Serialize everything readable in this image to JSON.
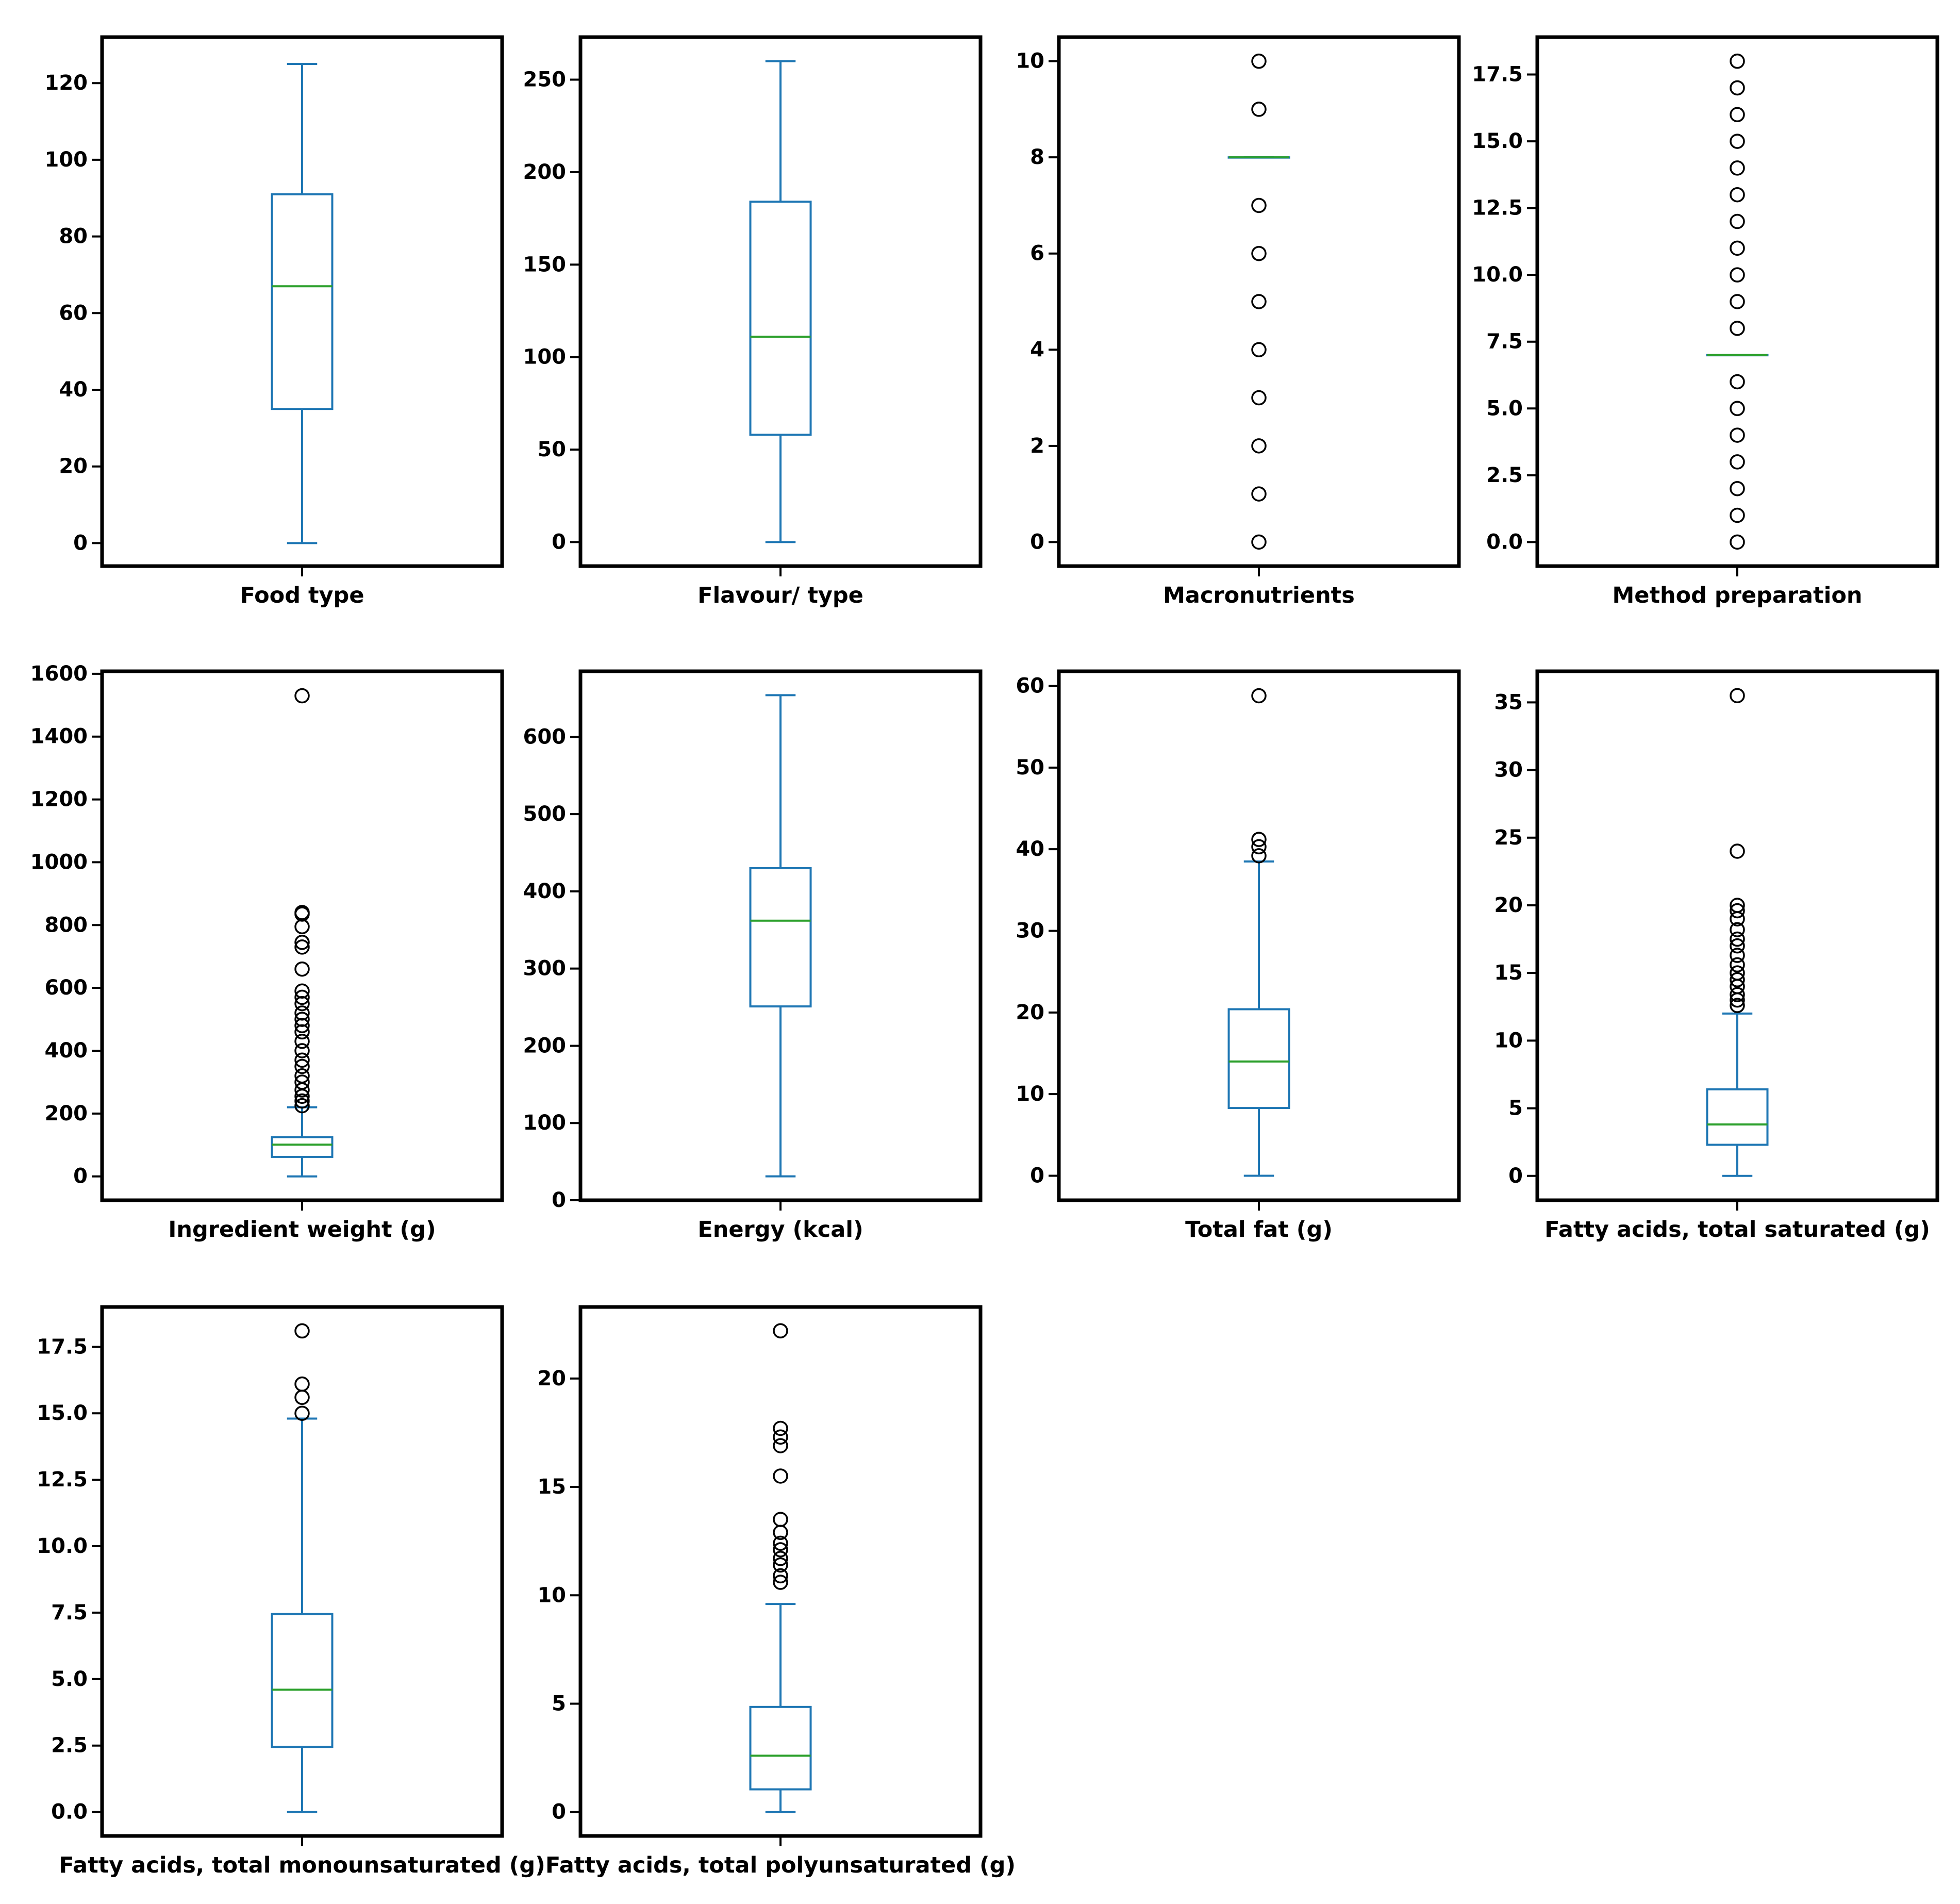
{
  "colors": {
    "box": "#1f77b4",
    "median": "#2ca02c",
    "frame": "#000000",
    "flier_edge": "#000000",
    "background": "#ffffff"
  },
  "chart_data": [
    {
      "type": "box",
      "label": "Food type",
      "ylim": [
        -6,
        132
      ],
      "yticks": [
        0,
        20,
        40,
        60,
        80,
        100,
        120
      ],
      "ytick_labels": [
        "0",
        "20",
        "40",
        "60",
        "80",
        "100",
        "120"
      ],
      "whisker_low": 0,
      "q1": 35,
      "median": 67,
      "q3": 91,
      "whisker_high": 125,
      "fliers": []
    },
    {
      "type": "box",
      "label": "Flavour/ type",
      "ylim": [
        -13,
        273
      ],
      "yticks": [
        0,
        50,
        100,
        150,
        200,
        250
      ],
      "ytick_labels": [
        "0",
        "50",
        "100",
        "150",
        "200",
        "250"
      ],
      "whisker_low": 0,
      "q1": 58,
      "median": 111,
      "q3": 184,
      "whisker_high": 260,
      "fliers": []
    },
    {
      "type": "box",
      "label": "Macronutrients",
      "ylim": [
        -0.5,
        10.5
      ],
      "yticks": [
        0,
        2,
        4,
        6,
        8,
        10
      ],
      "ytick_labels": [
        "0",
        "2",
        "4",
        "6",
        "8",
        "10"
      ],
      "whisker_low": 8,
      "q1": 8,
      "median": 8,
      "q3": 8,
      "whisker_high": 8,
      "fliers": [
        0,
        1,
        2,
        3,
        4,
        5,
        6,
        7,
        9,
        10
      ]
    },
    {
      "type": "box",
      "label": "Method preparation",
      "ylim": [
        -0.9,
        18.9
      ],
      "yticks": [
        0,
        2.5,
        5,
        7.5,
        10,
        12.5,
        15,
        17.5
      ],
      "ytick_labels": [
        "0.0",
        "2.5",
        "5.0",
        "7.5",
        "10.0",
        "12.5",
        "15.0",
        "17.5"
      ],
      "whisker_low": 7,
      "q1": 7,
      "median": 7,
      "q3": 7,
      "whisker_high": 7,
      "fliers": [
        0,
        1,
        2,
        3,
        4,
        5,
        6,
        8,
        9,
        10,
        11,
        12,
        13,
        14,
        15,
        16,
        17,
        18
      ]
    },
    {
      "type": "box",
      "label": "Ingredient weight (g)",
      "ylim": [
        -76,
        1608
      ],
      "yticks": [
        0,
        200,
        400,
        600,
        800,
        1000,
        1200,
        1400,
        1600
      ],
      "ytick_labels": [
        "0",
        "200",
        "400",
        "600",
        "800",
        "1000",
        "1200",
        "1400",
        "1600"
      ],
      "whisker_low": 0,
      "q1": 62,
      "median": 101,
      "q3": 125,
      "whisker_high": 220,
      "fliers": [
        225,
        240,
        255,
        275,
        300,
        320,
        350,
        370,
        400,
        430,
        460,
        480,
        500,
        520,
        550,
        570,
        590,
        660,
        730,
        745,
        795,
        835,
        840,
        1530
      ]
    },
    {
      "type": "box",
      "label": "Energy (kcal)",
      "ylim": [
        0,
        685
      ],
      "yticks": [
        0,
        100,
        200,
        300,
        400,
        500,
        600
      ],
      "ytick_labels": [
        "0",
        "100",
        "200",
        "300",
        "400",
        "500",
        "600"
      ],
      "whisker_low": 31,
      "q1": 251,
      "median": 362,
      "q3": 430,
      "whisker_high": 654,
      "fliers": []
    },
    {
      "type": "box",
      "label": "Total fat  (g)",
      "ylim": [
        -3,
        61.8
      ],
      "yticks": [
        0,
        10,
        20,
        30,
        40,
        50,
        60
      ],
      "ytick_labels": [
        "0",
        "10",
        "20",
        "30",
        "40",
        "50",
        "60"
      ],
      "whisker_low": 0,
      "q1": 8.3,
      "median": 14,
      "q3": 20.4,
      "whisker_high": 38.5,
      "fliers": [
        39.2,
        40.3,
        41.2,
        58.8
      ]
    },
    {
      "type": "box",
      "label": "Fatty acids, total saturated (g)",
      "ylim": [
        -1.8,
        37.3
      ],
      "yticks": [
        0,
        5,
        10,
        15,
        20,
        25,
        30,
        35
      ],
      "ytick_labels": [
        "0",
        "5",
        "10",
        "15",
        "20",
        "25",
        "30",
        "35"
      ],
      "whisker_low": 0,
      "q1": 2.3,
      "median": 3.8,
      "q3": 6.4,
      "whisker_high": 12,
      "fliers": [
        12.6,
        13,
        13.4,
        14,
        14.5,
        15,
        15.6,
        16.3,
        17,
        17.5,
        18.2,
        19,
        19.6,
        20,
        24,
        35.5
      ]
    },
    {
      "type": "box",
      "label": "Fatty acids, total monounsaturated (g)",
      "ylim": [
        -0.9,
        19
      ],
      "yticks": [
        0,
        2.5,
        5,
        7.5,
        10,
        12.5,
        15,
        17.5
      ],
      "ytick_labels": [
        "0.0",
        "2.5",
        "5.0",
        "7.5",
        "10.0",
        "12.5",
        "15.0",
        "17.5"
      ],
      "whisker_low": 0,
      "q1": 2.45,
      "median": 4.6,
      "q3": 7.45,
      "whisker_high": 14.8,
      "fliers": [
        15,
        15.6,
        16.1,
        18.1
      ]
    },
    {
      "type": "box",
      "label": "Fatty acids, total polyunsaturated (g)",
      "ylim": [
        -1.1,
        23.3
      ],
      "yticks": [
        0,
        5,
        10,
        15,
        20
      ],
      "ytick_labels": [
        "0",
        "5",
        "10",
        "15",
        "20"
      ],
      "whisker_low": 0,
      "q1": 1.05,
      "median": 2.6,
      "q3": 4.85,
      "whisker_high": 9.6,
      "fliers": [
        10.6,
        10.9,
        11.4,
        11.7,
        12.1,
        12.4,
        12.9,
        13.5,
        15.5,
        16.9,
        17.3,
        17.7,
        22.2
      ]
    }
  ]
}
